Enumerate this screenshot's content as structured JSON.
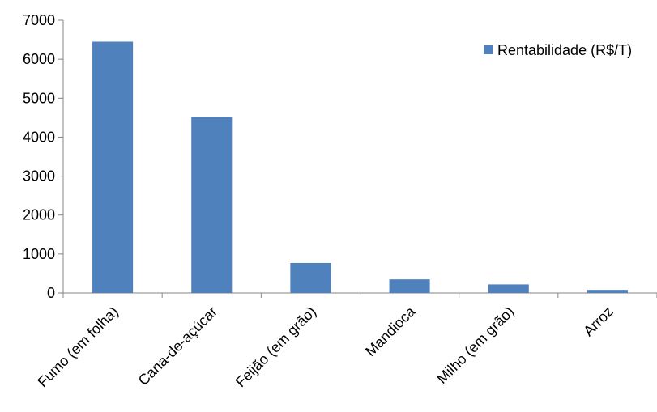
{
  "chart_data": {
    "type": "bar",
    "categories": [
      "Fumo (em folha)",
      "Cana-de-açúcar",
      "Feijão (em grão)",
      "Mandioca",
      "Milho (em grão)",
      "Arroz"
    ],
    "series": [
      {
        "name": "Rentabilidade (R$/T)",
        "values": [
          6450,
          4520,
          770,
          350,
          220,
          80
        ],
        "color": "#4f81bd"
      }
    ],
    "ylim": [
      0,
      7000
    ],
    "yticks": [
      0,
      1000,
      2000,
      3000,
      4000,
      5000,
      6000,
      7000
    ],
    "grid": false,
    "legend_position": "top-right",
    "title": "",
    "xlabel": "",
    "ylabel": ""
  }
}
